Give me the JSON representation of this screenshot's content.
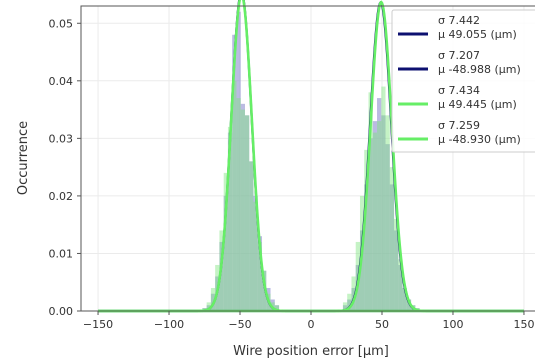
{
  "chart_data": {
    "type": "area",
    "title": "",
    "xlabel": "Wire position error [μm]",
    "ylabel": "Occurrence",
    "xlim": [
      -162,
      162
    ],
    "ylim": [
      0,
      0.053
    ],
    "xticks": [
      -150,
      -100,
      -50,
      0,
      50,
      100,
      150
    ],
    "yticks": [
      0.0,
      0.01,
      0.02,
      0.03,
      0.04,
      0.05
    ],
    "xtick_labels": [
      "−150",
      "−100",
      "−50",
      "0",
      "50",
      "100",
      "150"
    ],
    "ytick_labels": [
      "0.00",
      "0.01",
      "0.02",
      "0.03",
      "0.04",
      "0.05"
    ],
    "grid": true,
    "legend_position": "top-right",
    "histograms": [
      {
        "color": "#8d8dcf",
        "opacity": 0.6,
        "bin_width": 3,
        "x": [
          -75,
          -72,
          -69,
          -66,
          -63,
          -60,
          -57,
          -54,
          -51,
          -48,
          -45,
          -42,
          -39,
          -36,
          -33,
          -30,
          -27,
          -24,
          24,
          27,
          30,
          33,
          36,
          39,
          42,
          45,
          48,
          51,
          54,
          57,
          60,
          63,
          66,
          69,
          72,
          75
        ],
        "values": [
          0.0005,
          0.001,
          0.003,
          0.006,
          0.012,
          0.02,
          0.031,
          0.048,
          0.052,
          0.036,
          0.034,
          0.026,
          0.02,
          0.013,
          0.007,
          0.004,
          0.002,
          0.001,
          0.001,
          0.002,
          0.004,
          0.008,
          0.014,
          0.022,
          0.03,
          0.033,
          0.037,
          0.034,
          0.029,
          0.022,
          0.014,
          0.008,
          0.004,
          0.002,
          0.001,
          0.0005
        ]
      },
      {
        "color": "#7ee57e",
        "opacity": 0.45,
        "bin_width": 3,
        "x": [
          -75,
          -72,
          -69,
          -66,
          -63,
          -60,
          -57,
          -54,
          -51,
          -48,
          -45,
          -42,
          -39,
          -36,
          -33,
          -30,
          -27,
          -24,
          24,
          27,
          30,
          33,
          36,
          39,
          42,
          45,
          48,
          51,
          54,
          57,
          60,
          63,
          66,
          69,
          72,
          75
        ],
        "values": [
          0.0005,
          0.0015,
          0.004,
          0.008,
          0.014,
          0.024,
          0.032,
          0.04,
          0.037,
          0.035,
          0.034,
          0.026,
          0.019,
          0.012,
          0.007,
          0.003,
          0.0015,
          0.001,
          0.0015,
          0.003,
          0.006,
          0.012,
          0.02,
          0.028,
          0.038,
          0.031,
          0.033,
          0.039,
          0.034,
          0.025,
          0.016,
          0.009,
          0.004,
          0.002,
          0.001,
          0.0005
        ]
      }
    ],
    "series": [
      {
        "sigma": 7.442,
        "mu": 49.055,
        "color": "#0d1070",
        "width": 2.2,
        "label_sigma": "σ 7.442",
        "label_mu": "μ 49.055  (μm)"
      },
      {
        "sigma": 7.207,
        "mu": -48.988,
        "color": "#0d1070",
        "width": 2.2,
        "label_sigma": "σ 7.207",
        "label_mu": "μ -48.988  (μm)"
      },
      {
        "sigma": 7.434,
        "mu": 49.445,
        "color": "#66ee66",
        "width": 2.6,
        "label_sigma": "σ 7.434",
        "label_mu": "μ 49.445  (μm)"
      },
      {
        "sigma": 7.259,
        "mu": -48.93,
        "color": "#66ee66",
        "width": 2.6,
        "label_sigma": "σ 7.259",
        "label_mu": "μ -48.930  (μm)"
      }
    ]
  }
}
